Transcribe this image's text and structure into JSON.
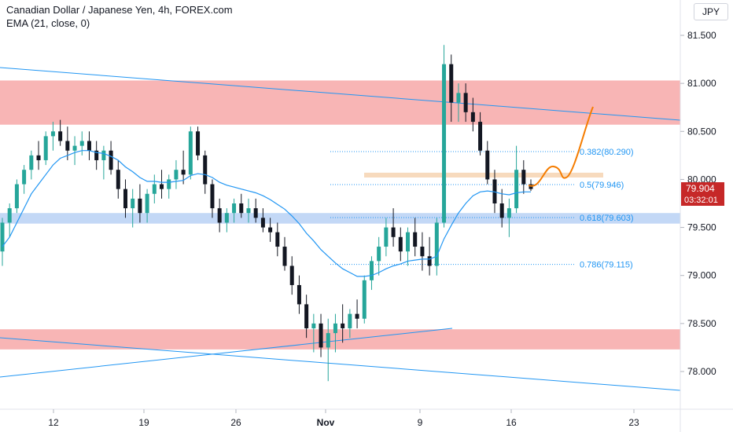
{
  "header": {
    "symbol_title": "Canadian Dollar / Japanese Yen, 4h, FOREX.com",
    "indicator": "EMA (21, close, 0)",
    "currency_button": "JPY"
  },
  "colors": {
    "up": "#26a69a",
    "down": "#131722",
    "ema": "#2196f3",
    "resistance_zone": "#f7a8a8",
    "support_zone": "#bcd4f5",
    "target_zone": "#f6d3b1",
    "projection": "#f57c00",
    "price_label_bg": "#c62828"
  },
  "chart_data": {
    "type": "candlestick",
    "y_axis": {
      "ticks": [
        "81.500",
        "81.000",
        "80.500",
        "80.000",
        "79.500",
        "79.000",
        "78.500",
        "78.000"
      ],
      "range": [
        77.6,
        81.8
      ]
    },
    "x_axis": {
      "tick_labels": [
        "12",
        "19",
        "26",
        "Nov",
        "9",
        "16",
        "23"
      ]
    },
    "current_price": "79.904",
    "countdown": "03:32:01",
    "zones": [
      {
        "kind": "resistance",
        "from": 80.57,
        "to": 81.03
      },
      {
        "kind": "resistance",
        "from": 78.23,
        "to": 78.44
      },
      {
        "kind": "support",
        "from": 79.54,
        "to": 79.65
      },
      {
        "kind": "target",
        "from": 80.02,
        "to": 80.07
      }
    ],
    "fibonacci": [
      {
        "label": "0.382(80.290)",
        "value": 80.29
      },
      {
        "label": "0.5(79.946)",
        "value": 79.946
      },
      {
        "label": "0.618(79.603)",
        "value": 79.603
      },
      {
        "label": "0.786(79.115)",
        "value": 79.115
      }
    ],
    "candles": [
      [
        79.25,
        79.6,
        79.1,
        79.55
      ],
      [
        79.55,
        79.75,
        79.4,
        79.7
      ],
      [
        79.7,
        80.0,
        79.65,
        79.95
      ],
      [
        79.95,
        80.15,
        79.85,
        80.1
      ],
      [
        80.1,
        80.3,
        80.0,
        80.25
      ],
      [
        80.25,
        80.4,
        80.1,
        80.2
      ],
      [
        80.2,
        80.5,
        80.15,
        80.45
      ],
      [
        80.45,
        80.6,
        80.3,
        80.5
      ],
      [
        80.5,
        80.62,
        80.35,
        80.4
      ],
      [
        80.4,
        80.55,
        80.2,
        80.3
      ],
      [
        80.3,
        80.45,
        80.15,
        80.35
      ],
      [
        80.35,
        80.5,
        80.25,
        80.4
      ],
      [
        80.4,
        80.5,
        80.2,
        80.3
      ],
      [
        80.3,
        80.4,
        80.1,
        80.2
      ],
      [
        80.2,
        80.35,
        80.0,
        80.3
      ],
      [
        80.3,
        80.4,
        80.05,
        80.1
      ],
      [
        80.1,
        80.2,
        79.8,
        79.9
      ],
      [
        79.9,
        80.0,
        79.6,
        79.7
      ],
      [
        79.7,
        79.9,
        79.5,
        79.8
      ],
      [
        79.8,
        79.95,
        79.55,
        79.65
      ],
      [
        79.65,
        79.9,
        79.55,
        79.85
      ],
      [
        79.85,
        80.05,
        79.75,
        79.95
      ],
      [
        79.95,
        80.1,
        79.8,
        79.9
      ],
      [
        79.9,
        80.05,
        79.8,
        80.0
      ],
      [
        80.0,
        80.2,
        79.9,
        80.1
      ],
      [
        80.1,
        80.3,
        79.95,
        80.05
      ],
      [
        80.05,
        80.55,
        80.0,
        80.5
      ],
      [
        80.5,
        80.55,
        80.2,
        80.25
      ],
      [
        80.25,
        80.3,
        79.85,
        79.95
      ],
      [
        79.95,
        80.0,
        79.6,
        79.7
      ],
      [
        79.7,
        79.8,
        79.45,
        79.55
      ],
      [
        79.55,
        79.7,
        79.45,
        79.65
      ],
      [
        79.65,
        79.8,
        79.55,
        79.75
      ],
      [
        79.75,
        79.85,
        79.6,
        79.65
      ],
      [
        79.65,
        79.8,
        79.55,
        79.7
      ],
      [
        79.7,
        79.8,
        79.55,
        79.6
      ],
      [
        79.6,
        79.7,
        79.45,
        79.5
      ],
      [
        79.5,
        79.6,
        79.35,
        79.45
      ],
      [
        79.45,
        79.55,
        79.2,
        79.3
      ],
      [
        79.3,
        79.4,
        79.05,
        79.1
      ],
      [
        79.1,
        79.2,
        78.8,
        78.9
      ],
      [
        78.9,
        79.0,
        78.6,
        78.7
      ],
      [
        78.7,
        78.8,
        78.35,
        78.45
      ],
      [
        78.45,
        78.6,
        78.2,
        78.5
      ],
      [
        78.5,
        78.6,
        78.15,
        78.25
      ],
      [
        78.25,
        78.55,
        77.9,
        78.4
      ],
      [
        78.4,
        78.6,
        78.2,
        78.5
      ],
      [
        78.5,
        78.7,
        78.3,
        78.45
      ],
      [
        78.45,
        78.65,
        78.35,
        78.6
      ],
      [
        78.6,
        78.75,
        78.45,
        78.55
      ],
      [
        78.55,
        79.0,
        78.5,
        78.95
      ],
      [
        78.95,
        79.2,
        78.85,
        79.15
      ],
      [
        79.15,
        79.4,
        79.0,
        79.3
      ],
      [
        79.3,
        79.6,
        79.2,
        79.5
      ],
      [
        79.5,
        79.7,
        79.3,
        79.4
      ],
      [
        79.4,
        79.5,
        79.15,
        79.25
      ],
      [
        79.25,
        79.5,
        79.1,
        79.45
      ],
      [
        79.45,
        79.6,
        79.2,
        79.3
      ],
      [
        79.3,
        79.45,
        79.05,
        79.2
      ],
      [
        79.2,
        79.4,
        79.0,
        79.1
      ],
      [
        79.1,
        79.6,
        79.0,
        79.55
      ],
      [
        79.55,
        81.4,
        79.5,
        81.2
      ],
      [
        81.2,
        81.3,
        80.6,
        80.8
      ],
      [
        80.8,
        81.0,
        80.6,
        80.9
      ],
      [
        80.9,
        81.0,
        80.6,
        80.7
      ],
      [
        80.7,
        80.85,
        80.5,
        80.6
      ],
      [
        80.6,
        80.7,
        80.25,
        80.3
      ],
      [
        80.3,
        80.4,
        79.95,
        80.0
      ],
      [
        80.0,
        80.1,
        79.65,
        79.75
      ],
      [
        79.75,
        79.9,
        79.5,
        79.6
      ],
      [
        79.6,
        79.8,
        79.4,
        79.7
      ],
      [
        79.7,
        80.35,
        79.65,
        80.1
      ],
      [
        80.1,
        80.2,
        79.85,
        79.95
      ],
      [
        79.95,
        80.0,
        79.88,
        79.9
      ]
    ],
    "ema21": [
      79.3,
      79.4,
      79.55,
      79.7,
      79.85,
      79.95,
      80.05,
      80.15,
      80.22,
      80.25,
      80.28,
      80.3,
      80.3,
      80.28,
      80.27,
      80.24,
      80.2,
      80.13,
      80.08,
      80.02,
      79.98,
      79.98,
      79.97,
      79.97,
      79.98,
      79.99,
      80.04,
      80.06,
      80.05,
      80.02,
      79.97,
      79.94,
      79.92,
      79.9,
      79.88,
      79.86,
      79.83,
      79.79,
      79.74,
      79.69,
      79.62,
      79.54,
      79.44,
      79.36,
      79.27,
      79.2,
      79.13,
      79.07,
      79.03,
      78.99,
      78.99,
      79.0,
      79.03,
      79.07,
      79.1,
      79.12,
      79.15,
      79.16,
      79.17,
      79.17,
      79.2,
      79.38,
      79.52,
      79.65,
      79.75,
      79.83,
      79.87,
      79.88,
      79.87,
      79.85,
      79.84,
      79.86,
      79.87,
      79.87
    ]
  }
}
